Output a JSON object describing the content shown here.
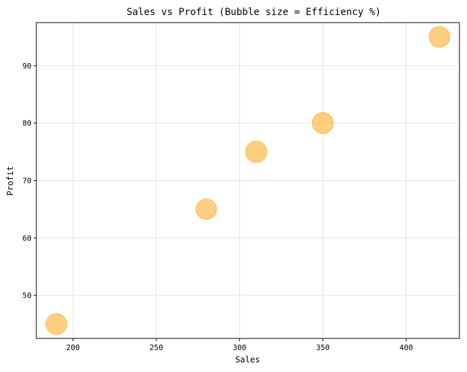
{
  "chart_data": {
    "type": "scatter",
    "title": "Sales vs Profit (Bubble size = Efficiency %)",
    "xlabel": "Sales",
    "ylabel": "Profit",
    "xlim": [
      178,
      432
    ],
    "ylim": [
      42.5,
      97.5
    ],
    "x_ticks": [
      200,
      250,
      300,
      350,
      400
    ],
    "y_ticks": [
      50,
      60,
      70,
      80,
      90
    ],
    "grid": true,
    "bubble_color": "#fdb94c",
    "bubble_opacity": 0.7,
    "points": [
      {
        "x": 190,
        "y": 45,
        "efficiency": 88
      },
      {
        "x": 280,
        "y": 65,
        "efficiency": 85
      },
      {
        "x": 310,
        "y": 75,
        "efficiency": 92
      },
      {
        "x": 350,
        "y": 80,
        "efficiency": 90
      },
      {
        "x": 420,
        "y": 95,
        "efficiency": 87
      }
    ]
  }
}
